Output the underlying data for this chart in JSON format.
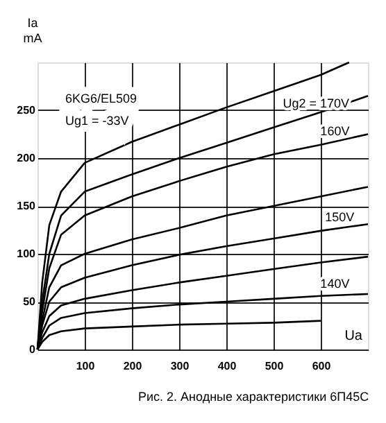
{
  "chart_data": {
    "type": "line",
    "title": "Рис. 2. Анодные характеристики 6П45С",
    "xlabel": "Ua",
    "ylabel": "Ia mA",
    "xlim": [
      0,
      700
    ],
    "ylim": [
      0,
      300
    ],
    "xticks": [
      100,
      200,
      300,
      400,
      500,
      600
    ],
    "yticks": [
      0,
      50,
      100,
      150,
      200,
      250
    ],
    "grid": true,
    "marker": "none",
    "line_style": "solid",
    "series": [
      {
        "color": "#000000",
        "x": [
          0,
          10,
          25,
          50,
          100,
          200,
          300,
          400,
          500,
          600,
          660
        ],
        "values": [
          0,
          70,
          130,
          165,
          195,
          217,
          235,
          253,
          270,
          287,
          300
        ]
      },
      {
        "color": "#000000",
        "x": [
          0,
          10,
          25,
          50,
          100,
          200,
          300,
          400,
          500,
          600,
          700
        ],
        "values": [
          0,
          50,
          100,
          140,
          165,
          183,
          200,
          216,
          232,
          248,
          265
        ]
      },
      {
        "color": "#000000",
        "x": [
          0,
          10,
          25,
          50,
          100,
          200,
          300,
          400,
          500,
          600,
          700
        ],
        "values": [
          0,
          40,
          85,
          120,
          140,
          160,
          176,
          191,
          204,
          214,
          225
        ]
      },
      {
        "color": "#000000",
        "x": [
          0,
          10,
          25,
          50,
          100,
          200,
          300,
          400,
          500,
          600,
          700
        ],
        "values": [
          0,
          30,
          65,
          88,
          100,
          115,
          127,
          140,
          150,
          160,
          170
        ]
      },
      {
        "color": "#000000",
        "x": [
          0,
          10,
          25,
          50,
          100,
          200,
          300,
          400,
          500,
          600,
          700
        ],
        "values": [
          0,
          25,
          50,
          65,
          75,
          88,
          99,
          108,
          116,
          124,
          131
        ]
      },
      {
        "color": "#000000",
        "x": [
          0,
          10,
          25,
          50,
          100,
          200,
          300,
          400,
          500,
          600,
          700
        ],
        "values": [
          0,
          18,
          35,
          46,
          53,
          62,
          70,
          77,
          84,
          91,
          97
        ]
      },
      {
        "color": "#000000",
        "x": [
          0,
          10,
          25,
          50,
          100,
          200,
          300,
          400,
          500,
          600,
          700
        ],
        "values": [
          0,
          12,
          25,
          33,
          38,
          43,
          47,
          50,
          53,
          56,
          58
        ]
      },
      {
        "color": "#000000",
        "x": [
          0,
          10,
          25,
          50,
          100,
          200,
          300,
          400,
          500,
          600
        ],
        "values": [
          0,
          8,
          15,
          19,
          22,
          24,
          26,
          27,
          28,
          30
        ]
      }
    ],
    "annotations": [
      "6KG6/EL509",
      "Ug1 = -33V",
      {
        "text": "Ug2 = 170V",
        "x": 590,
        "y": 246
      },
      {
        "text": "160V",
        "x": 630,
        "y": 217
      },
      {
        "text": "150V",
        "x": 640,
        "y": 127
      },
      {
        "text": "140V",
        "x": 630,
        "y": 57
      }
    ]
  }
}
